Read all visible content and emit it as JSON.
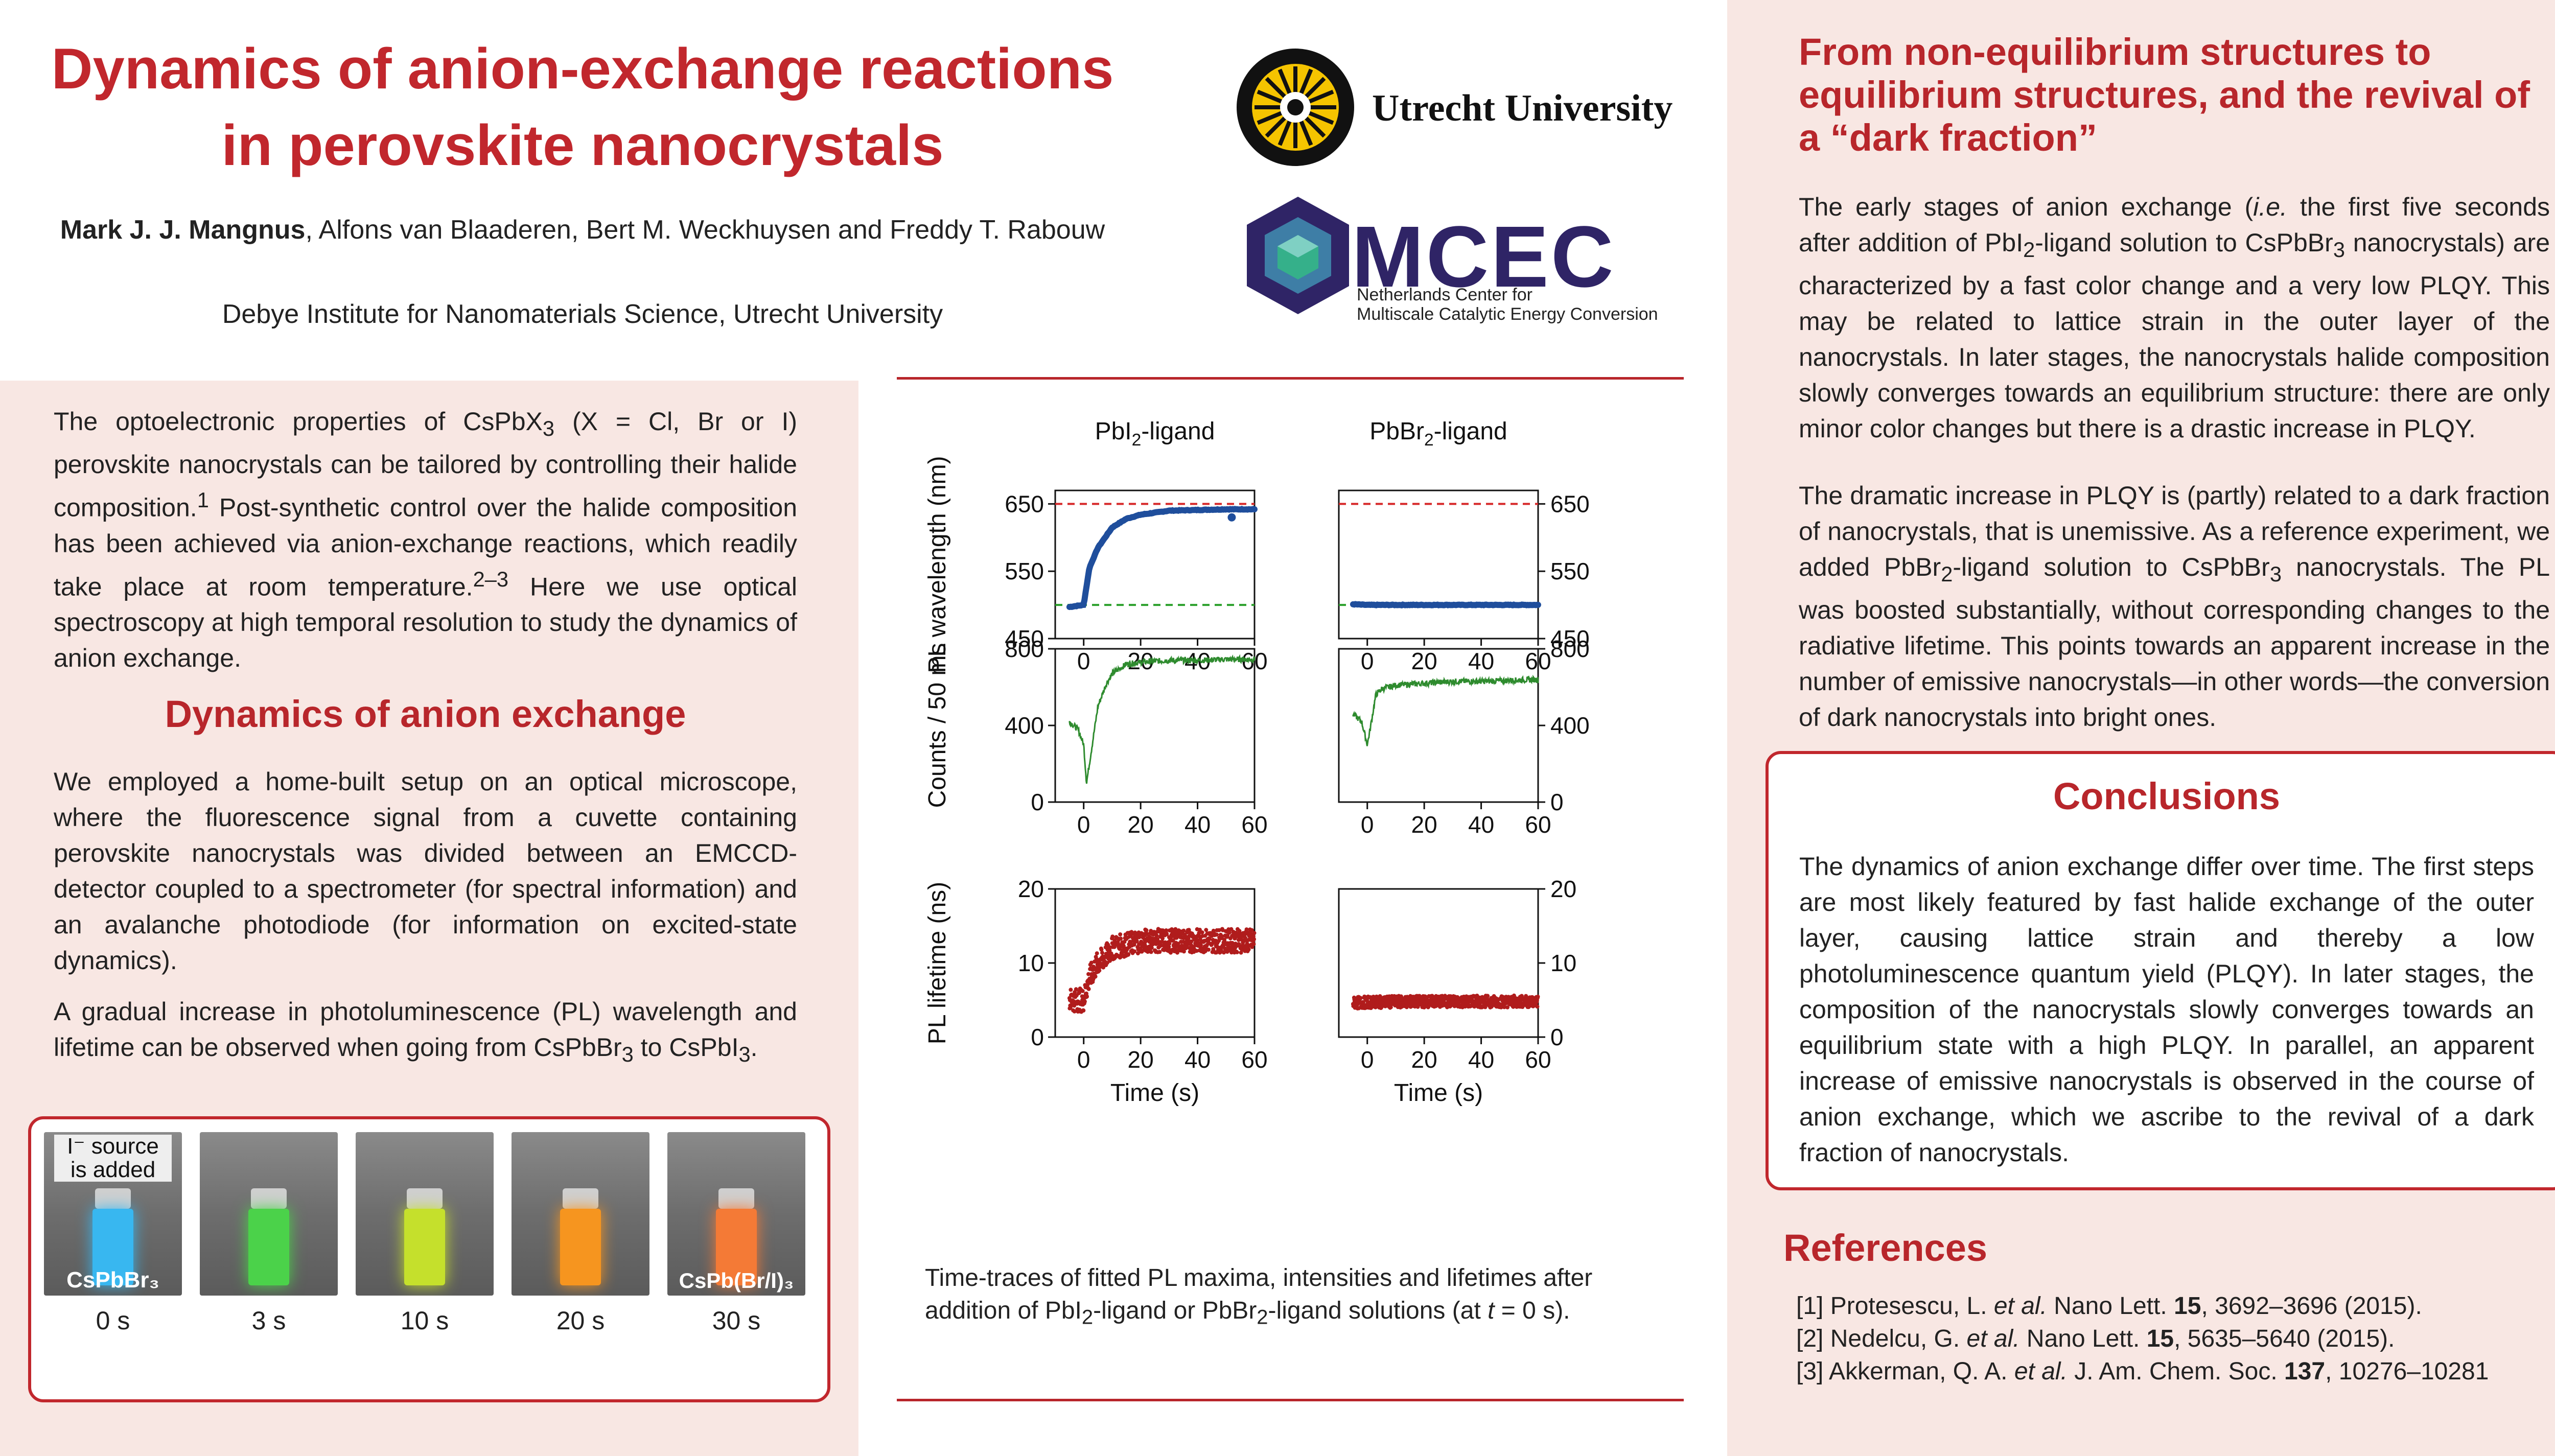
{
  "title_line1": "Dynamics of anion-exchange reactions",
  "title_line2": "in perovskite nanocrystals",
  "authors_bold": "Mark J. J. Mangnus",
  "authors_rest": ", Alfons van Blaaderen, Bert M. Weckhuysen and Freddy T. Rabouw",
  "affiliation": "Debye Institute for Nanomaterials Science, Utrecht University",
  "logos": {
    "uu": "Utrecht University",
    "mcec": "MCEC",
    "mcec_sub1": "Netherlands Center for",
    "mcec_sub2": "Multiscale Catalytic Energy Conversion"
  },
  "intro": {
    "p1_a": "The optoelectronic properties of CsPbX",
    "p1_sub": "3",
    "p1_b": " (X = Cl, Br or I) perovskite nanocrystals can be tailored by controlling their halide composition.",
    "p1_sup1": "1",
    "p1_c": " Post-synthetic control over the halide composition has been achieved via anion-exchange reactions, which readily take place at room temperature.",
    "p1_sup2": "2–3",
    "p1_d": " Here we use optical spectroscopy at high temporal resolution to study the dynamics of anion exchange."
  },
  "dyn": {
    "heading": "Dynamics of anion exchange",
    "p1": "We employed a home-built setup on an optical microscope, where the fluorescence signal from a cuvette containing perovskite nanocrystals was divided between an EMCCD-detector coupled to a spectrometer (for spectral information) and an avalanche photodiode (for information on excited-state dynamics).",
    "p2_a": "A gradual increase in photoluminescence (PL) wavelength and lifetime can be observed when going from CsPbBr",
    "p2_sub1": "3",
    "p2_b": " to CsPbI",
    "p2_sub2": "3",
    "p2_c": "."
  },
  "photos": {
    "label_source_1": "I⁻ source",
    "label_source_2": "is added",
    "label_left": "CsPbBr₃",
    "label_right": "CsPb(Br/I)₃",
    "times": [
      "0 s",
      "3 s",
      "10 s",
      "20 s",
      "30 s"
    ],
    "colors": [
      "#38b7f0",
      "#4bd24a",
      "#c5e02c",
      "#f6951f",
      "#f47a36"
    ]
  },
  "figure": {
    "col1_title_a": "PbI",
    "col1_title_sub": "2",
    "col1_title_b": "-ligand",
    "col2_title_a": "PbBr",
    "col2_title_sub": "2",
    "col2_title_b": "-ligand",
    "ylabel_top": "PL wavelength (nm)",
    "ylabel_mid": "Counts / 50 ms",
    "ylabel_bot": "PL lifetime (ns)",
    "xlabel": "Time (s)",
    "caption_l1_a": "Time-traces of fitted PL maxima, intensities and lifetimes after",
    "caption_l2_a": "addition of PbI",
    "caption_l2_sub1": "2",
    "caption_l2_b": "-ligand or PbBr",
    "caption_l2_sub2": "2",
    "caption_l2_c": "-ligand solutions (at ",
    "caption_l2_t": "t",
    "caption_l2_d": " = 0 s)."
  },
  "chart_data": [
    {
      "type": "line",
      "panel": "wavelength-PbI2",
      "x": [
        -5,
        0,
        2,
        5,
        10,
        15,
        20,
        30,
        40,
        50,
        55,
        60
      ],
      "y": [
        497,
        500,
        555,
        585,
        615,
        628,
        634,
        640,
        641,
        642,
        642,
        642
      ],
      "xlim": [
        -10,
        60
      ],
      "ylim": [
        450,
        670
      ],
      "yticks": [
        450,
        550,
        650
      ],
      "xticks": [
        0,
        20,
        40,
        60
      ],
      "hlines": [
        {
          "y": 650,
          "color": "#d62728"
        },
        {
          "y": 500,
          "color": "#2ca02c"
        }
      ],
      "outlier": {
        "x": 52,
        "y": 630
      },
      "color": "#1f4e9c"
    },
    {
      "type": "line",
      "panel": "wavelength-PbBr2",
      "x": [
        -10,
        0,
        20,
        40,
        60
      ],
      "y": [
        502,
        500,
        500,
        500,
        500
      ],
      "xlim": [
        -10,
        60
      ],
      "ylim": [
        450,
        670
      ],
      "yticks": [
        450,
        550,
        650
      ],
      "xticks": [
        0,
        20,
        40,
        60
      ],
      "hlines": [
        {
          "y": 650,
          "color": "#d62728"
        },
        {
          "y": 500,
          "color": "#2ca02c"
        }
      ],
      "color": "#1f4e9c"
    },
    {
      "type": "line",
      "panel": "counts-PbI2",
      "x": [
        -10,
        -5,
        -2,
        0,
        1,
        3,
        5,
        8,
        10,
        15,
        20,
        30,
        40,
        50,
        60
      ],
      "y": [
        430,
        420,
        380,
        300,
        100,
        300,
        500,
        620,
        670,
        720,
        730,
        740,
        740,
        745,
        745
      ],
      "xlim": [
        -10,
        60
      ],
      "ylim": [
        0,
        800
      ],
      "yticks": [
        0,
        400,
        800
      ],
      "xticks": [
        0,
        20,
        40,
        60
      ],
      "color": "#2e8b2e"
    },
    {
      "type": "line",
      "panel": "counts-PbBr2",
      "x": [
        -10,
        -5,
        -2,
        0,
        1,
        3,
        5,
        10,
        20,
        30,
        40,
        50,
        60
      ],
      "y": [
        450,
        460,
        420,
        300,
        380,
        560,
        590,
        610,
        620,
        630,
        630,
        635,
        640
      ],
      "xlim": [
        -10,
        60
      ],
      "ylim": [
        0,
        800
      ],
      "yticks": [
        0,
        400,
        800
      ],
      "xticks": [
        0,
        20,
        40,
        60
      ],
      "color": "#2e8b2e"
    },
    {
      "type": "scatter",
      "panel": "lifetime-PbI2",
      "x": [
        -10,
        -5,
        0,
        2,
        5,
        8,
        10,
        15,
        20,
        30,
        40,
        50,
        60
      ],
      "y": [
        5,
        5,
        5,
        8,
        10,
        11,
        12,
        12.5,
        13,
        13,
        13,
        13,
        13
      ],
      "xlim": [
        -10,
        60
      ],
      "ylim": [
        0,
        20
      ],
      "yticks": [
        0,
        10,
        20
      ],
      "xticks": [
        0,
        20,
        40,
        60
      ],
      "color": "#b01c1c"
    },
    {
      "type": "scatter",
      "panel": "lifetime-PbBr2",
      "x": [
        -10,
        0,
        20,
        40,
        60
      ],
      "y": [
        4.5,
        4.7,
        4.8,
        4.8,
        4.8
      ],
      "xlim": [
        -10,
        60
      ],
      "ylim": [
        0,
        20
      ],
      "yticks": [
        0,
        10,
        20
      ],
      "xticks": [
        0,
        20,
        40,
        60
      ],
      "color": "#b01c1c"
    }
  ],
  "right": {
    "heading1": "From non-equilibrium structures to",
    "heading2": "equilibrium structures, and the revival of",
    "heading3": "a “dark fraction”",
    "p1_a": "The early stages of anion exchange (",
    "p1_ie": "i.e.",
    "p1_b": " the first five seconds after addition of PbI",
    "p1_sub1": "2",
    "p1_c": "-ligand solution to CsPbBr",
    "p1_sub2": "3",
    "p1_d": " nanocrystals) are characterized by a fast color change and a very low PLQY. This may be related to lattice strain in the outer layer of the nanocrystals. In later stages, the nanocrystals halide composition slowly converges towards an equilibrium structure: there are only minor color changes but there is a drastic increase in PLQY.",
    "p2_a": "The dramatic increase in PLQY is (partly) related to a dark fraction of nanocrystals, that is unemissive. As a reference experiment, we added PbBr",
    "p2_sub1": "2",
    "p2_b": "-ligand solution to CsPbBr",
    "p2_sub2": "3",
    "p2_c": " nanocrystals. The PL was boosted substantially, without corresponding changes to the radiative lifetime. This points towards an apparent increase in the number of emissive nanocrystals—in other words—the conversion of dark nanocrystals into bright ones."
  },
  "conclusions": {
    "heading": "Conclusions",
    "text": "The dynamics of anion exchange differ over time. The first steps are most likely featured by fast halide exchange of the outer layer, causing lattice strain and thereby a low photoluminescence quantum yield (PLQY). In later stages, the composition of the nanocrystals slowly converges towards an equilibrium state with a high PLQY. In parallel, an apparent increase of emissive nanocrystals is observed in the course of anion exchange, which we ascribe to the revival of a dark fraction of nanocrystals."
  },
  "references": {
    "heading": "References",
    "r1_a": "[1] Protesescu, L. ",
    "r1_etal": "et al.",
    "r1_b": " Nano Lett. ",
    "r1_vol": "15",
    "r1_c": ", 3692–3696 (2015).",
    "r2_a": "[2] Nedelcu, G. ",
    "r2_etal": "et al.",
    "r2_b": " Nano Lett. ",
    "r2_vol": "15",
    "r2_c": ", 5635–5640 (2015).",
    "r3_a": "[3] Akkerman, Q. A. ",
    "r3_etal": "et al.",
    "r3_b": " J. Am. Chem. Soc. ",
    "r3_vol": "137",
    "r3_c": ", 10276–10281"
  }
}
